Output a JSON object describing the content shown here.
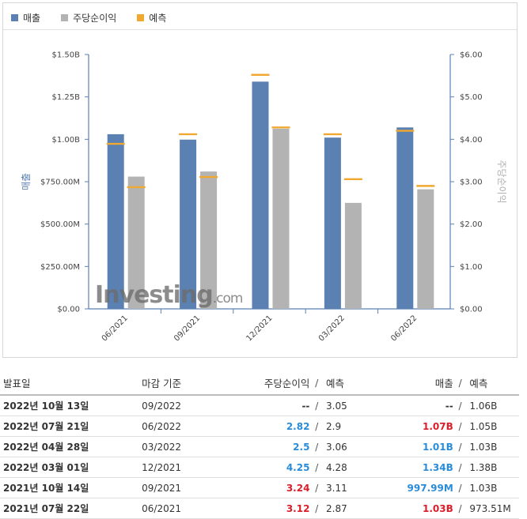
{
  "legend": [
    {
      "label": "매출",
      "color": "#5b80b2"
    },
    {
      "label": "주당순이익",
      "color": "#b3b3b3"
    },
    {
      "label": "예측",
      "color": "#f0a830"
    }
  ],
  "watermark": {
    "brand": "Investing",
    "suffix": ".com"
  },
  "chart_data": {
    "type": "bar",
    "categories": [
      "06/2021",
      "09/2021",
      "12/2021",
      "03/2022",
      "06/2022"
    ],
    "series": [
      {
        "name": "매출",
        "axis": "left",
        "values": [
          1.03,
          0.99799,
          1.34,
          1.01,
          1.07
        ],
        "color": "#5b80b2"
      },
      {
        "name": "주당순이익",
        "axis": "right",
        "values": [
          3.12,
          3.24,
          4.25,
          2.5,
          2.82
        ],
        "color": "#b3b3b3"
      }
    ],
    "estimates": {
      "name": "예측",
      "revenue": [
        0.97351,
        1.03,
        1.38,
        1.03,
        1.05
      ],
      "eps": [
        2.87,
        3.11,
        4.28,
        3.06,
        2.9
      ],
      "color": "#f0a830"
    },
    "left_axis": {
      "label": "매출",
      "ylim": [
        0,
        1.5
      ],
      "ticks": [
        0,
        0.25,
        0.5,
        0.75,
        1.0,
        1.25,
        1.5
      ],
      "tick_labels": [
        "$0.00",
        "$250.00M",
        "$500.00M",
        "$750.00M",
        "$1.00B",
        "$1.25B",
        "$1.50B"
      ]
    },
    "right_axis": {
      "label": "주당순이익",
      "ylim": [
        0,
        6
      ],
      "ticks": [
        0,
        1,
        2,
        3,
        4,
        5,
        6
      ],
      "tick_labels": [
        "$0.00",
        "$1.00",
        "$2.00",
        "$3.00",
        "$4.00",
        "$5.00",
        "$6.00"
      ]
    },
    "legend_position": "top-left",
    "grid": false
  },
  "table": {
    "headers": {
      "date": "발표일",
      "period": "마감 기준",
      "eps": "주당순이익",
      "sep": "/",
      "eps_est": "예측",
      "revenue": "매출",
      "revenue_est": "예측"
    },
    "rows": [
      {
        "date": "2022년 10월 13일",
        "period": "09/2022",
        "eps": "--",
        "eps_class": "neu",
        "eps_est": "3.05",
        "revenue": "--",
        "revenue_class": "neu",
        "revenue_est": "1.06B"
      },
      {
        "date": "2022년 07월 21일",
        "period": "06/2022",
        "eps": "2.82",
        "eps_class": "pos",
        "eps_est": "2.9",
        "revenue": "1.07B",
        "revenue_class": "neg",
        "revenue_est": "1.05B"
      },
      {
        "date": "2022년 04월 28일",
        "period": "03/2022",
        "eps": "2.5",
        "eps_class": "pos",
        "eps_est": "3.06",
        "revenue": "1.01B",
        "revenue_class": "pos",
        "revenue_est": "1.03B"
      },
      {
        "date": "2022년 03월 01일",
        "period": "12/2021",
        "eps": "4.25",
        "eps_class": "pos",
        "eps_est": "4.28",
        "revenue": "1.34B",
        "revenue_class": "pos",
        "revenue_est": "1.38B"
      },
      {
        "date": "2021년 10월 14일",
        "period": "09/2021",
        "eps": "3.24",
        "eps_class": "neg",
        "eps_est": "3.11",
        "revenue": "997.99M",
        "revenue_class": "pos",
        "revenue_est": "1.03B"
      },
      {
        "date": "2021년 07월 22일",
        "period": "06/2021",
        "eps": "3.12",
        "eps_class": "neg",
        "eps_est": "2.87",
        "revenue": "1.03B",
        "revenue_class": "neg",
        "revenue_est": "973.51M"
      }
    ]
  }
}
